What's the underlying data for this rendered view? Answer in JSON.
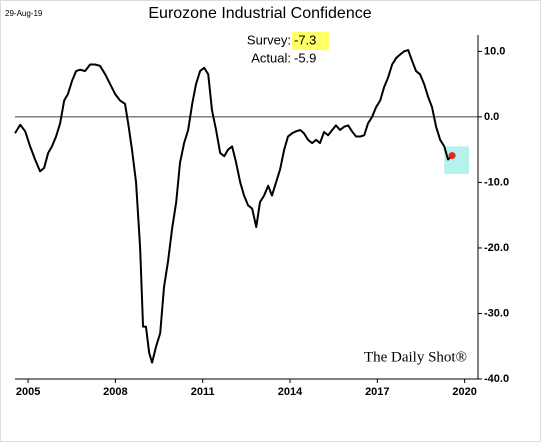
{
  "chart_data": {
    "type": "line",
    "date": "29-Aug-19",
    "title": "Eurozone Industrial Confidence",
    "annotations": [
      {
        "label": "Survey:",
        "value": -7.3,
        "highlight": "#ffff66"
      },
      {
        "label": "Actual:",
        "value": -5.9
      }
    ],
    "watermark": "The Daily Shot®",
    "x": [
      2004.55,
      2004.73,
      2004.9,
      2005.07,
      2005.24,
      2005.41,
      2005.55,
      2005.69,
      2005.82,
      2005.96,
      2006.1,
      2006.24,
      2006.37,
      2006.51,
      2006.65,
      2006.79,
      2006.96,
      2007.13,
      2007.3,
      2007.47,
      2007.65,
      2007.82,
      2007.99,
      2008.16,
      2008.33,
      2008.44,
      2008.57,
      2008.71,
      2008.85,
      2008.95,
      2009.05,
      2009.16,
      2009.26,
      2009.4,
      2009.54,
      2009.67,
      2009.81,
      2009.95,
      2010.09,
      2010.22,
      2010.36,
      2010.5,
      2010.64,
      2010.77,
      2010.91,
      2011.05,
      2011.19,
      2011.32,
      2011.46,
      2011.6,
      2011.74,
      2011.87,
      2012.01,
      2012.15,
      2012.29,
      2012.42,
      2012.56,
      2012.7,
      2012.84,
      2012.97,
      2013.11,
      2013.25,
      2013.38,
      2013.52,
      2013.66,
      2013.8,
      2013.93,
      2014.07,
      2014.21,
      2014.35,
      2014.48,
      2014.62,
      2014.76,
      2014.9,
      2015.03,
      2015.17,
      2015.31,
      2015.45,
      2015.58,
      2015.72,
      2015.86,
      2016.0,
      2016.13,
      2016.27,
      2016.41,
      2016.55,
      2016.68,
      2016.82,
      2016.96,
      2017.1,
      2017.23,
      2017.37,
      2017.51,
      2017.65,
      2017.78,
      2017.92,
      2018.06,
      2018.2,
      2018.33,
      2018.47,
      2018.61,
      2018.75,
      2018.88,
      2019.02,
      2019.16,
      2019.3,
      2019.43,
      2019.57
    ],
    "series": [
      {
        "name": "Eurozone Industrial Confidence",
        "color": "#000000",
        "last_point_color": "#e8231f",
        "values": [
          -2.5,
          -1.2,
          -2.2,
          -4.5,
          -6.5,
          -8.3,
          -7.8,
          -5.5,
          -4.5,
          -3.0,
          -1.0,
          2.5,
          3.5,
          5.5,
          7.0,
          7.2,
          7.0,
          8.0,
          8.0,
          7.8,
          6.5,
          5.0,
          3.5,
          2.5,
          2.0,
          -1.0,
          -5.0,
          -10,
          -20,
          -32,
          -32,
          -36,
          -37.5,
          -35,
          -33,
          -26,
          -22,
          -17,
          -13,
          -7,
          -4,
          -2,
          2,
          5,
          7,
          7.5,
          6.5,
          1,
          -2,
          -5.5,
          -6,
          -5,
          -4.5,
          -7,
          -10,
          -12,
          -13.5,
          -14,
          -16.8,
          -13,
          -12,
          -10.5,
          -12,
          -10,
          -8,
          -5,
          -3,
          -2.5,
          -2.2,
          -2.0,
          -2.5,
          -3.5,
          -4,
          -3.5,
          -4,
          -2.3,
          -2.8,
          -2,
          -1.3,
          -2,
          -1.5,
          -1.3,
          -2.2,
          -3,
          -3,
          -2.8,
          -1,
          0,
          1.5,
          2.5,
          4.5,
          6,
          8,
          9,
          9.5,
          10,
          10.2,
          8.5,
          7,
          6.5,
          5,
          3,
          1.5,
          -1.5,
          -3.5,
          -4.5,
          -6.5,
          -5.9
        ]
      }
    ],
    "highlight": {
      "color": "#b5f2ee",
      "x": [
        2019.3,
        2020.15
      ],
      "y": [
        -8.7,
        -4.5
      ]
    },
    "reference_line": 0,
    "xlim": [
      2004.55,
      2020.46
    ],
    "xticks": [
      2005,
      2008,
      2011,
      2014,
      2017,
      2020
    ],
    "ylim": [
      -40,
      12.5
    ],
    "yticks": [
      {
        "value": 10,
        "label": "10.0"
      },
      {
        "value": 0,
        "label": "0.0"
      },
      {
        "value": -10,
        "label": "-10.0"
      },
      {
        "value": -20,
        "label": "-20.0"
      },
      {
        "value": -30,
        "label": "-30.0"
      },
      {
        "value": -40,
        "label": "-40.0"
      }
    ],
    "y_axis_side": "right"
  }
}
